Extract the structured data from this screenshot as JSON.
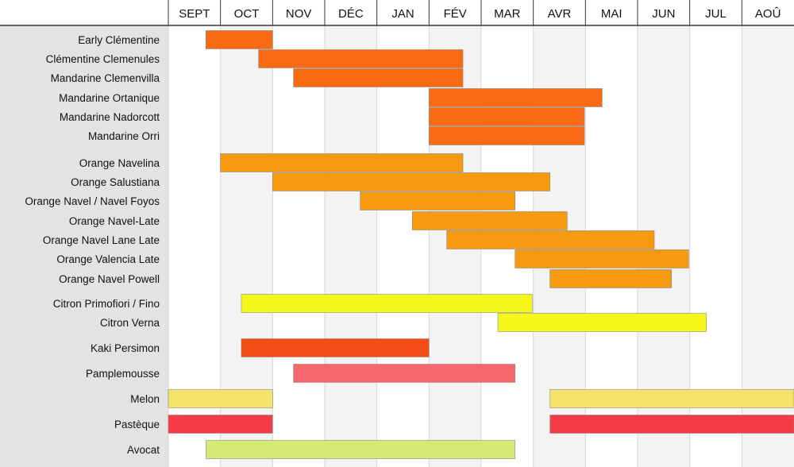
{
  "chart_data": {
    "type": "gantt",
    "title": "",
    "xlabel": "",
    "ylabel": "",
    "categories": [
      "SEPT",
      "OCT",
      "NOV",
      "DÉC",
      "JAN",
      "FÉV",
      "MAR",
      "AVR",
      "MAI",
      "JUN",
      "JUL",
      "AOÛ"
    ],
    "x_range_months": [
      0,
      12
    ],
    "grid": true,
    "legend": "none",
    "rows": [
      {
        "label": "Early Clémentine",
        "color": "#f96a12",
        "segments": [
          [
            0.72,
            2.0
          ]
        ]
      },
      {
        "label": "Clémentine Clemenules",
        "color": "#f96a12",
        "segments": [
          [
            1.73,
            5.65
          ]
        ]
      },
      {
        "label": "Mandarine Clemenvilla",
        "color": "#f96a12",
        "segments": [
          [
            2.4,
            5.65
          ]
        ]
      },
      {
        "label": "Mandarine Ortanique",
        "color": "#f96a12",
        "segments": [
          [
            5.0,
            8.32
          ]
        ]
      },
      {
        "label": "Mandarine Nadorcott",
        "color": "#f96a12",
        "segments": [
          [
            5.0,
            7.98
          ]
        ]
      },
      {
        "label": "Mandarine Orri",
        "color": "#f96a12",
        "segments": [
          [
            5.0,
            7.98
          ]
        ]
      },
      {
        "label": "Orange Navelina",
        "color": "#f7990f",
        "segments": [
          [
            1.0,
            5.65
          ]
        ]
      },
      {
        "label": "Orange Salustiana",
        "color": "#f7990f",
        "segments": [
          [
            2.0,
            7.32
          ]
        ]
      },
      {
        "label": "Orange Navel / Navel Foyos",
        "color": "#f7990f",
        "segments": [
          [
            3.68,
            6.65
          ]
        ]
      },
      {
        "label": "Orange Navel-Late",
        "color": "#f7990f",
        "segments": [
          [
            4.68,
            7.65
          ]
        ]
      },
      {
        "label": "Orange Navel Lane Late",
        "color": "#f7990f",
        "segments": [
          [
            5.34,
            9.32
          ]
        ]
      },
      {
        "label": "Orange Valencia Late",
        "color": "#f7990f",
        "segments": [
          [
            6.65,
            9.98
          ]
        ]
      },
      {
        "label": "Orange Navel Powell",
        "color": "#f7990f",
        "segments": [
          [
            7.32,
            9.65
          ]
        ]
      },
      {
        "label": "Citron Primofiori / Fino",
        "color": "#f5f71a",
        "segments": [
          [
            1.4,
            6.98
          ]
        ]
      },
      {
        "label": "Citron Verna",
        "color": "#f5f71a",
        "segments": [
          [
            6.32,
            10.32
          ]
        ]
      },
      {
        "label": "Kaki Persimon",
        "color": "#f54b14",
        "segments": [
          [
            1.4,
            5.0
          ]
        ]
      },
      {
        "label": "Pamplemousse",
        "color": "#f7666a",
        "segments": [
          [
            2.4,
            6.65
          ]
        ]
      },
      {
        "label": "Melon",
        "color": "#f5e26a",
        "segments": [
          [
            0.0,
            2.0
          ],
          [
            7.32,
            12.0
          ]
        ]
      },
      {
        "label": "Pastèque",
        "color": "#f53a48",
        "segments": [
          [
            0.0,
            2.0
          ],
          [
            7.32,
            12.0
          ]
        ]
      },
      {
        "label": "Avocat",
        "color": "#d4ea75",
        "segments": [
          [
            0.72,
            6.65
          ]
        ]
      }
    ]
  }
}
